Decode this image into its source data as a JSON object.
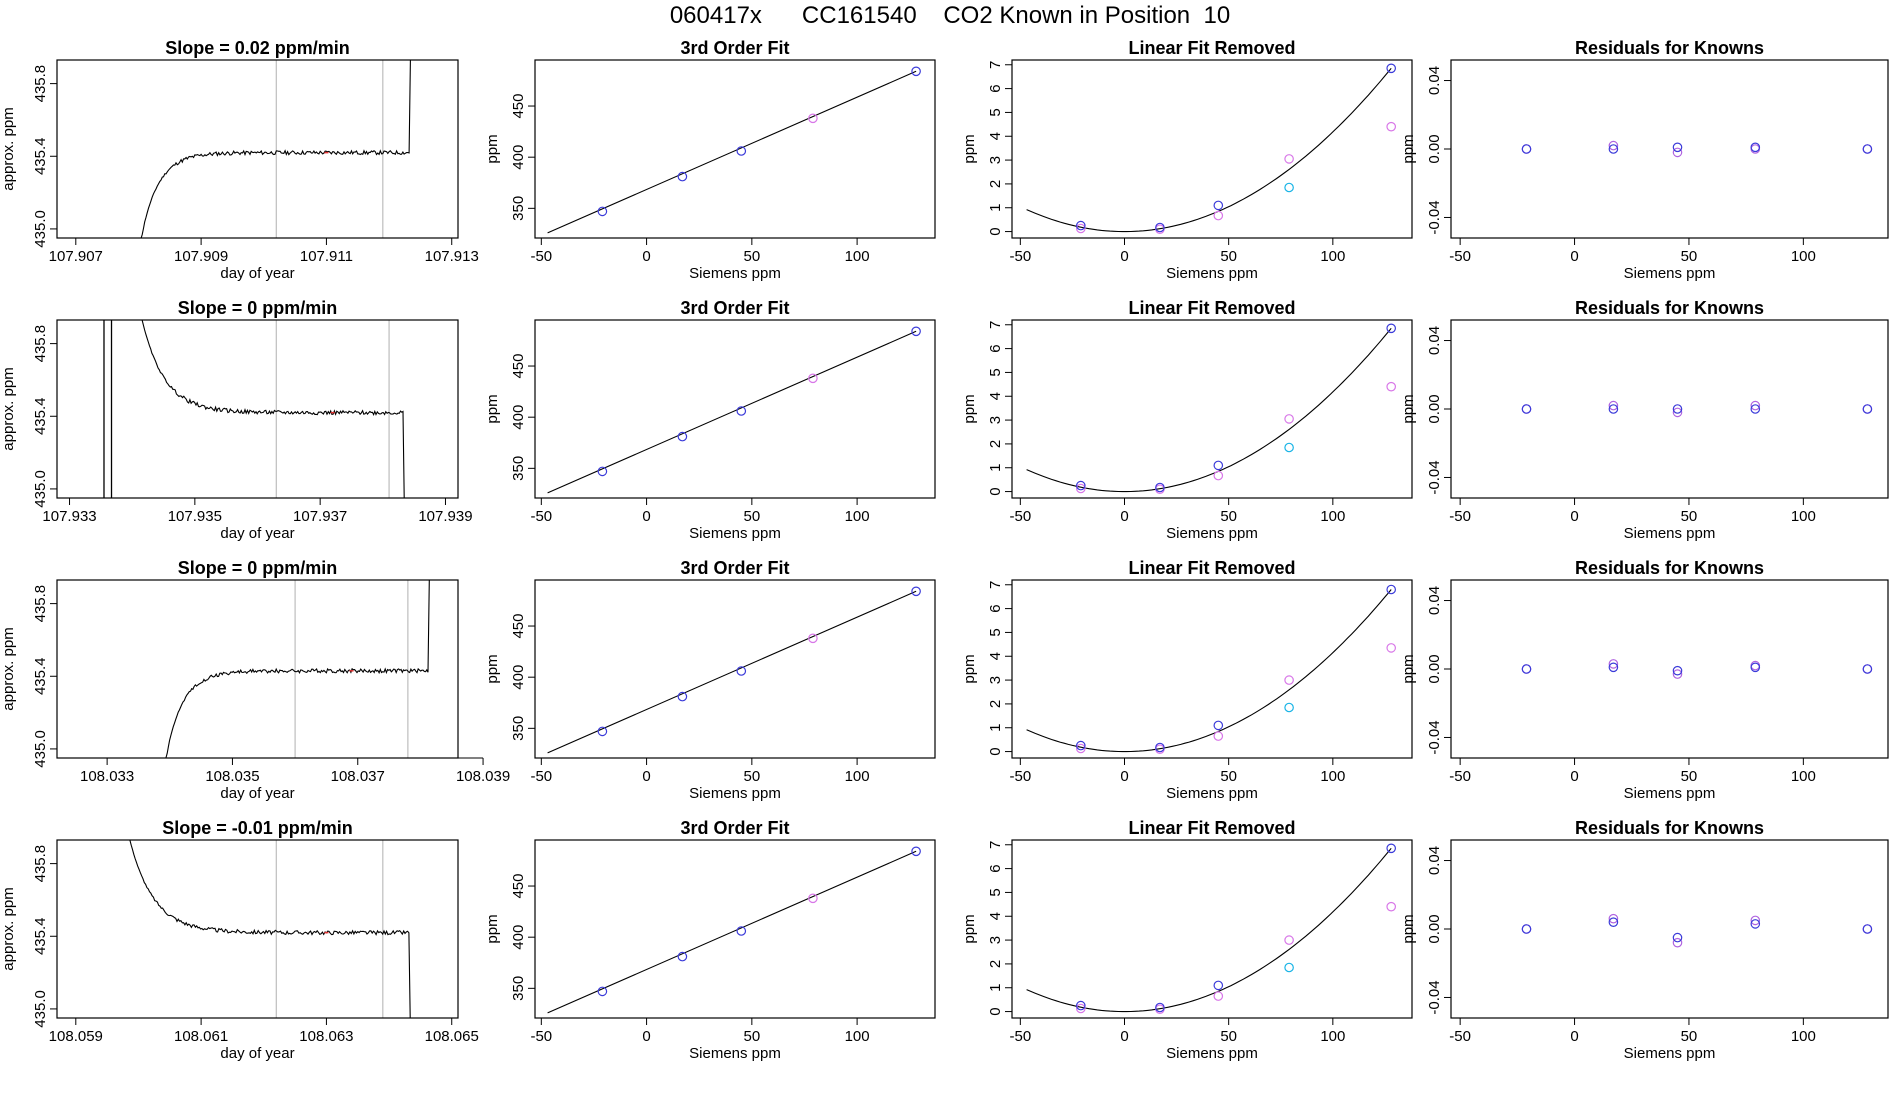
{
  "page": {
    "title": "060417x      CC161540    CO2 Known in Position  10"
  },
  "colors": {
    "line": "#000000",
    "window": "#bdbdbd",
    "fit_point": "#3b3bd9",
    "raw_point": "#d877e8",
    "cyan_point": "#19b4e6",
    "resid_a": "#3b3bd9",
    "resid_b": "#b064e0",
    "red_tick": "#e03030"
  },
  "chart_data": [
    {
      "type": "line",
      "title": "Slope =  0.02  ppm/min",
      "xlabel": "day of year",
      "ylabel": "approx. ppm",
      "xlim": [
        107.9067,
        107.9131
      ],
      "ylim": [
        434.95,
        435.93
      ],
      "xticks": [
        "107.907",
        "107.909",
        "107.911",
        "107.913"
      ],
      "xtick_values": [
        107.907,
        107.909,
        107.911,
        107.913
      ],
      "yticks": [
        "435.0",
        "435.4",
        "435.8"
      ],
      "ytick_values": [
        435.0,
        435.4,
        435.8
      ],
      "window": [
        107.9102,
        107.9119
      ],
      "shape": "rise",
      "x_start": 107.908,
      "x_end": 107.9124,
      "plateau": 435.42,
      "edge": 435.93,
      "red_x": 107.911
    },
    {
      "type": "scatter",
      "title": "3rd Order Fit",
      "xlabel": "Siemens ppm",
      "ylabel": "ppm",
      "xlim": [
        -53,
        137
      ],
      "ylim": [
        321,
        495
      ],
      "xticks": [
        "-50",
        "0",
        "50",
        "100"
      ],
      "xtick_values": [
        -50,
        0,
        50,
        100
      ],
      "yticks": [
        "350",
        "400",
        "450"
      ],
      "ytick_values": [
        350,
        400,
        450
      ],
      "fit_x": [
        -47,
        128
      ],
      "fit_y": [
        326,
        484
      ],
      "points_x": [
        -21,
        17,
        45,
        79,
        128
      ],
      "points_y": [
        347,
        381,
        406,
        438,
        484
      ]
    },
    {
      "type": "scatter",
      "title": "Linear Fit Removed",
      "xlabel": "Siemens ppm",
      "ylabel": "ppm",
      "xlim": [
        -54,
        138
      ],
      "ylim": [
        -0.27,
        7.2
      ],
      "xticks": [
        "-50",
        "0",
        "50",
        "100"
      ],
      "xtick_values": [
        -50,
        0,
        50,
        100
      ],
      "yticks": [
        "0",
        "1",
        "2",
        "3",
        "4",
        "5",
        "6",
        "7"
      ],
      "ytick_values": [
        0,
        1,
        2,
        3,
        4,
        5,
        6,
        7
      ],
      "curve_range": [
        -47,
        128
      ],
      "points_x": [
        -21,
        17,
        45,
        79,
        128
      ],
      "blue_y": [
        0.25,
        0.17,
        1.1,
        null,
        6.85
      ],
      "magenta_y": [
        0.13,
        0.1,
        0.67,
        3.05,
        4.4
      ],
      "cyan_y": [
        null,
        null,
        null,
        1.85,
        null
      ]
    },
    {
      "type": "scatter",
      "title": "Residuals for Knowns",
      "xlabel": "Siemens ppm",
      "ylabel": "ppm",
      "xlim": [
        -54,
        137
      ],
      "ylim": [
        -0.052,
        0.052
      ],
      "xticks": [
        "-50",
        "0",
        "50",
        "100"
      ],
      "xtick_values": [
        -50,
        0,
        50,
        100
      ],
      "yticks": [
        "-0.04",
        "0.00",
        "0.04"
      ],
      "ytick_values": [
        -0.04,
        0.0,
        0.04
      ],
      "points_x": [
        -21,
        17,
        45,
        79,
        128
      ],
      "a_y": [
        0.0,
        0.0,
        0.001,
        0.001,
        0.0
      ],
      "b_y": [
        0.0,
        0.002,
        -0.002,
        0.0,
        0.0
      ]
    },
    {
      "type": "line",
      "title": "Slope =  0  ppm/min",
      "xlabel": "day of year",
      "ylabel": "approx. ppm",
      "xlim": [
        107.9328,
        107.9392
      ],
      "ylim": [
        434.95,
        435.93
      ],
      "xticks": [
        "107.933",
        "107.935",
        "107.937",
        "107.939"
      ],
      "xtick_values": [
        107.933,
        107.935,
        107.937,
        107.939
      ],
      "yticks": [
        "435.0",
        "435.4",
        "435.8"
      ],
      "ytick_values": [
        435.0,
        435.4,
        435.8
      ],
      "window": [
        107.9363,
        107.9381
      ],
      "shape": "fall",
      "x_start": 107.9341,
      "x_end": 107.9384,
      "plateau": 435.42,
      "edge": 435.93,
      "red_x": 107.9372,
      "spikes": [
        107.93355,
        107.93367
      ]
    },
    {
      "type": "scatter",
      "title": "3rd Order Fit",
      "xlabel": "Siemens ppm",
      "ylabel": "ppm",
      "xlim": [
        -53,
        137
      ],
      "ylim": [
        321,
        495
      ],
      "xticks": [
        "-50",
        "0",
        "50",
        "100"
      ],
      "xtick_values": [
        -50,
        0,
        50,
        100
      ],
      "yticks": [
        "350",
        "400",
        "450"
      ],
      "ytick_values": [
        350,
        400,
        450
      ],
      "fit_x": [
        -47,
        128
      ],
      "fit_y": [
        326,
        484
      ],
      "points_x": [
        -21,
        17,
        45,
        79,
        128
      ],
      "points_y": [
        347,
        381,
        406,
        438,
        484
      ]
    },
    {
      "type": "scatter",
      "title": "Linear Fit Removed",
      "xlabel": "Siemens ppm",
      "ylabel": "ppm",
      "xlim": [
        -54,
        138
      ],
      "ylim": [
        -0.27,
        7.2
      ],
      "xticks": [
        "-50",
        "0",
        "50",
        "100"
      ],
      "xtick_values": [
        -50,
        0,
        50,
        100
      ],
      "yticks": [
        "0",
        "1",
        "2",
        "3",
        "4",
        "5",
        "6",
        "7"
      ],
      "ytick_values": [
        0,
        1,
        2,
        3,
        4,
        5,
        6,
        7
      ],
      "curve_range": [
        -47,
        128
      ],
      "points_x": [
        -21,
        17,
        45,
        79,
        128
      ],
      "blue_y": [
        0.25,
        0.17,
        1.1,
        null,
        6.85
      ],
      "magenta_y": [
        0.13,
        0.1,
        0.67,
        3.05,
        4.4
      ],
      "cyan_y": [
        null,
        null,
        null,
        1.85,
        null
      ]
    },
    {
      "type": "scatter",
      "title": "Residuals for Knowns",
      "xlabel": "Siemens ppm",
      "ylabel": "ppm",
      "xlim": [
        -54,
        137
      ],
      "ylim": [
        -0.052,
        0.052
      ],
      "xticks": [
        "-50",
        "0",
        "50",
        "100"
      ],
      "xtick_values": [
        -50,
        0,
        50,
        100
      ],
      "yticks": [
        "-0.04",
        "0.00",
        "0.04"
      ],
      "ytick_values": [
        -0.04,
        0.0,
        0.04
      ],
      "points_x": [
        -21,
        17,
        45,
        79,
        128
      ],
      "a_y": [
        0.0,
        0.0,
        0.0,
        0.0,
        0.0
      ],
      "b_y": [
        0.0,
        0.002,
        -0.002,
        0.002,
        0.0
      ]
    },
    {
      "type": "line",
      "title": "Slope =  0  ppm/min",
      "xlabel": "day of year",
      "ylabel": "approx. ppm",
      "xlim": [
        108.0322,
        108.0386
      ],
      "ylim": [
        434.95,
        435.93
      ],
      "xticks": [
        "108.033",
        "108.035",
        "108.037",
        "108.039"
      ],
      "xtick_values": [
        108.033,
        108.035,
        108.037,
        108.039
      ],
      "yticks": [
        "435.0",
        "435.4",
        "435.8"
      ],
      "ytick_values": [
        435.0,
        435.4,
        435.8
      ],
      "window": [
        108.036,
        108.0378
      ],
      "shape": "rise",
      "x_start": 108.0339,
      "x_end": 108.0382,
      "plateau": 435.43,
      "edge": 435.93,
      "red_x": 108.0369
    },
    {
      "type": "scatter",
      "title": "3rd Order Fit",
      "xlabel": "Siemens ppm",
      "ylabel": "ppm",
      "xlim": [
        -53,
        137
      ],
      "ylim": [
        321,
        495
      ],
      "xticks": [
        "-50",
        "0",
        "50",
        "100"
      ],
      "xtick_values": [
        -50,
        0,
        50,
        100
      ],
      "yticks": [
        "350",
        "400",
        "450"
      ],
      "ytick_values": [
        350,
        400,
        450
      ],
      "fit_x": [
        -47,
        128
      ],
      "fit_y": [
        326,
        484
      ],
      "points_x": [
        -21,
        17,
        45,
        79,
        128
      ],
      "points_y": [
        347,
        381,
        406,
        438,
        484
      ]
    },
    {
      "type": "scatter",
      "title": "Linear Fit Removed",
      "xlabel": "Siemens ppm",
      "ylabel": "ppm",
      "xlim": [
        -54,
        138
      ],
      "ylim": [
        -0.27,
        7.2
      ],
      "xticks": [
        "-50",
        "0",
        "50",
        "100"
      ],
      "xtick_values": [
        -50,
        0,
        50,
        100
      ],
      "yticks": [
        "0",
        "1",
        "2",
        "3",
        "4",
        "5",
        "6",
        "7"
      ],
      "ytick_values": [
        0,
        1,
        2,
        3,
        4,
        5,
        6,
        7
      ],
      "curve_range": [
        -47,
        128
      ],
      "points_x": [
        -21,
        17,
        45,
        79,
        128
      ],
      "blue_y": [
        0.25,
        0.17,
        1.1,
        null,
        6.8
      ],
      "magenta_y": [
        0.13,
        0.1,
        0.65,
        3.0,
        4.35
      ],
      "cyan_y": [
        null,
        null,
        null,
        1.85,
        null
      ]
    },
    {
      "type": "scatter",
      "title": "Residuals for Knowns",
      "xlabel": "Siemens ppm",
      "ylabel": "ppm",
      "xlim": [
        -54,
        137
      ],
      "ylim": [
        -0.052,
        0.052
      ],
      "xticks": [
        "-50",
        "0",
        "50",
        "100"
      ],
      "xtick_values": [
        -50,
        0,
        50,
        100
      ],
      "yticks": [
        "-0.04",
        "0.00",
        "0.04"
      ],
      "ytick_values": [
        -0.04,
        0.0,
        0.04
      ],
      "points_x": [
        -21,
        17,
        45,
        79,
        128
      ],
      "a_y": [
        0.0,
        0.001,
        -0.001,
        0.001,
        0.0
      ],
      "b_y": [
        0.0,
        0.003,
        -0.003,
        0.002,
        0.0
      ]
    },
    {
      "type": "line",
      "title": "Slope =  -0.01  ppm/min",
      "xlabel": "day of year",
      "ylabel": "approx. ppm",
      "xlim": [
        108.0587,
        108.0651
      ],
      "ylim": [
        434.95,
        435.93
      ],
      "xticks": [
        "108.059",
        "108.061",
        "108.063",
        "108.065"
      ],
      "xtick_values": [
        108.059,
        108.061,
        108.063,
        108.065
      ],
      "yticks": [
        "435.0",
        "435.4",
        "435.8"
      ],
      "ytick_values": [
        435.0,
        435.4,
        435.8
      ],
      "window": [
        108.0622,
        108.0639
      ],
      "shape": "fall",
      "x_start": 108.0598,
      "x_end": 108.0644,
      "plateau": 435.42,
      "edge": 435.93,
      "red_x": 108.063
    },
    {
      "type": "scatter",
      "title": "3rd Order Fit",
      "xlabel": "Siemens ppm",
      "ylabel": "ppm",
      "xlim": [
        -53,
        137
      ],
      "ylim": [
        321,
        495
      ],
      "xticks": [
        "-50",
        "0",
        "50",
        "100"
      ],
      "xtick_values": [
        -50,
        0,
        50,
        100
      ],
      "yticks": [
        "350",
        "400",
        "450"
      ],
      "ytick_values": [
        350,
        400,
        450
      ],
      "fit_x": [
        -47,
        128
      ],
      "fit_y": [
        326,
        484
      ],
      "points_x": [
        -21,
        17,
        45,
        79,
        128
      ],
      "points_y": [
        347,
        381,
        406,
        438,
        484
      ]
    },
    {
      "type": "scatter",
      "title": "Linear Fit Removed",
      "xlabel": "Siemens ppm",
      "ylabel": "ppm",
      "xlim": [
        -54,
        138
      ],
      "ylim": [
        -0.27,
        7.2
      ],
      "xticks": [
        "-50",
        "0",
        "50",
        "100"
      ],
      "xtick_values": [
        -50,
        0,
        50,
        100
      ],
      "yticks": [
        "0",
        "1",
        "2",
        "3",
        "4",
        "5",
        "6",
        "7"
      ],
      "ytick_values": [
        0,
        1,
        2,
        3,
        4,
        5,
        6,
        7
      ],
      "curve_range": [
        -47,
        128
      ],
      "points_x": [
        -21,
        17,
        45,
        79,
        128
      ],
      "blue_y": [
        0.25,
        0.17,
        1.1,
        null,
        6.85
      ],
      "magenta_y": [
        0.13,
        0.1,
        0.65,
        3.0,
        4.4
      ],
      "cyan_y": [
        null,
        null,
        null,
        1.85,
        null
      ]
    },
    {
      "type": "scatter",
      "title": "Residuals for Knowns",
      "xlabel": "Siemens ppm",
      "ylabel": "ppm",
      "xlim": [
        -54,
        137
      ],
      "ylim": [
        -0.052,
        0.052
      ],
      "xticks": [
        "-50",
        "0",
        "50",
        "100"
      ],
      "xtick_values": [
        -50,
        0,
        50,
        100
      ],
      "yticks": [
        "-0.04",
        "0.00",
        "0.04"
      ],
      "ytick_values": [
        -0.04,
        0.0,
        0.04
      ],
      "points_x": [
        -21,
        17,
        45,
        79,
        128
      ],
      "a_y": [
        0.0,
        0.004,
        -0.005,
        0.003,
        0.0
      ],
      "b_y": [
        0.0,
        0.006,
        -0.008,
        0.005,
        0.0
      ]
    }
  ]
}
